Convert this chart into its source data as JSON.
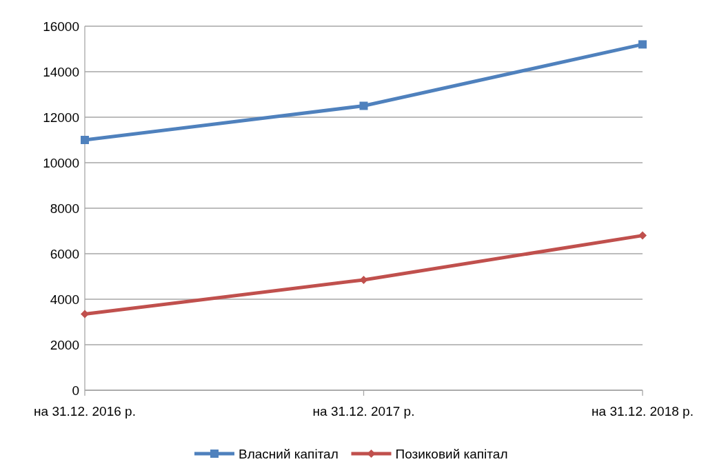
{
  "chart_data": {
    "type": "line",
    "categories": [
      "на 31.12. 2016 р.",
      "на 31.12. 2017 р.",
      "на 31.12. 2018 р."
    ],
    "series": [
      {
        "name": "Власний капітал",
        "color": "#4f81bd",
        "values": [
          11000,
          12500,
          15200
        ],
        "marker": "square"
      },
      {
        "name": "Позиковий капітал",
        "color": "#c0504d",
        "values": [
          3350,
          4850,
          6800
        ],
        "marker": "diamond"
      }
    ],
    "ylim": [
      0,
      16000
    ],
    "yticks": [
      0,
      2000,
      4000,
      6000,
      8000,
      10000,
      12000,
      14000,
      16000
    ],
    "grid": "y",
    "legend": "bottom"
  }
}
